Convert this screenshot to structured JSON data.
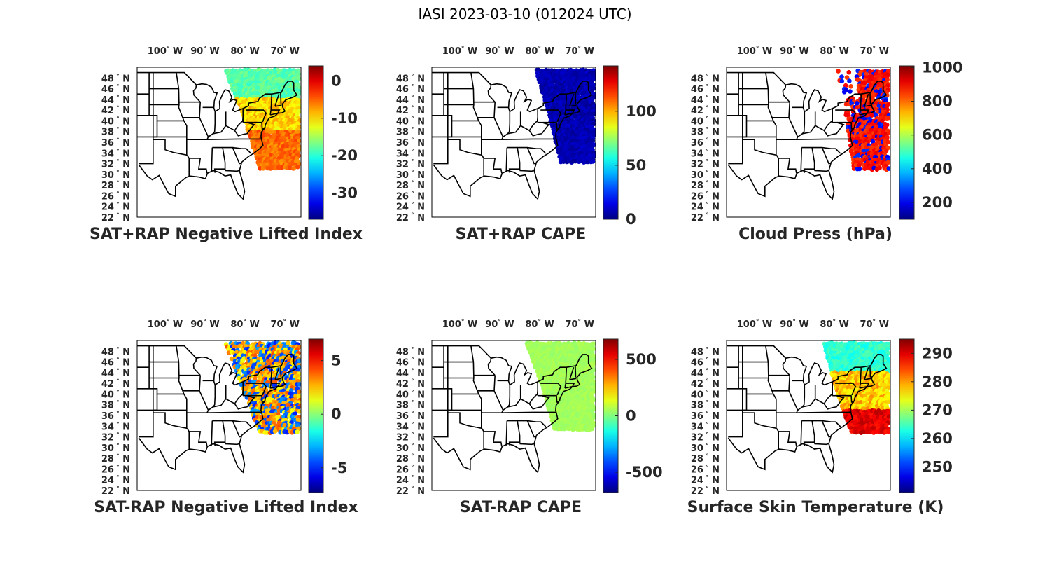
{
  "figure_title": "IASI 2023-03-10 (012024 UTC)",
  "lon_labels": [
    {
      "lon": -100,
      "text": "100",
      "hem": "W"
    },
    {
      "lon": -90,
      "text": "90",
      "hem": "W"
    },
    {
      "lon": -80,
      "text": "80",
      "hem": "W"
    },
    {
      "lon": -70,
      "text": "70",
      "hem": "W"
    }
  ],
  "lat_labels": [
    {
      "lat": 22,
      "text": "22",
      "hem": "N"
    },
    {
      "lat": 24,
      "text": "24",
      "hem": "N"
    },
    {
      "lat": 26,
      "text": "26",
      "hem": "N"
    },
    {
      "lat": 28,
      "text": "28",
      "hem": "N"
    },
    {
      "lat": 30,
      "text": "30",
      "hem": "N"
    },
    {
      "lat": 32,
      "text": "32",
      "hem": "N"
    },
    {
      "lat": 34,
      "text": "34",
      "hem": "N"
    },
    {
      "lat": 36,
      "text": "36",
      "hem": "N"
    },
    {
      "lat": 38,
      "text": "38",
      "hem": "N"
    },
    {
      "lat": 40,
      "text": "40",
      "hem": "N"
    },
    {
      "lat": 42,
      "text": "42",
      "hem": "N"
    },
    {
      "lat": 44,
      "text": "44",
      "hem": "N"
    },
    {
      "lat": 46,
      "text": "46",
      "hem": "N"
    },
    {
      "lat": 48,
      "text": "48",
      "hem": "N"
    }
  ],
  "map_extent": {
    "lon": [
      -107,
      -66
    ],
    "lat": [
      22,
      50
    ]
  },
  "colormap": "jet",
  "panels": [
    {
      "id": "sat-rap-plus-negative-lifted-index",
      "title": "SAT+RAP Negative Lifted Index",
      "colorbar": {
        "min": -37,
        "max": 4,
        "ticks": [
          0,
          -10,
          -20,
          -30
        ]
      }
    },
    {
      "id": "sat-rap-plus-cape",
      "title": "SAT+RAP CAPE",
      "colorbar": {
        "min": 0,
        "max": 142,
        "ticks": [
          100,
          50,
          0
        ]
      }
    },
    {
      "id": "cloud-press",
      "title": "Cloud Press (hPa)",
      "colorbar": {
        "min": 100,
        "max": 1010,
        "ticks": [
          1000,
          800,
          600,
          400,
          200
        ]
      }
    },
    {
      "id": "sat-rap-minus-negative-lifted-index",
      "title": "SAT-RAP Negative Lifted Index",
      "colorbar": {
        "min": -7.3,
        "max": 7,
        "ticks": [
          5,
          0,
          -5
        ]
      }
    },
    {
      "id": "sat-rap-minus-cape",
      "title": "SAT-RAP CAPE",
      "colorbar": {
        "min": -680,
        "max": 680,
        "ticks": [
          500,
          0,
          -500
        ]
      }
    },
    {
      "id": "surface-skin-temperature",
      "title": "Surface Skin Temperature (K)",
      "colorbar": {
        "min": 241,
        "max": 295,
        "ticks": [
          290,
          280,
          270,
          260,
          250
        ]
      }
    }
  ]
}
